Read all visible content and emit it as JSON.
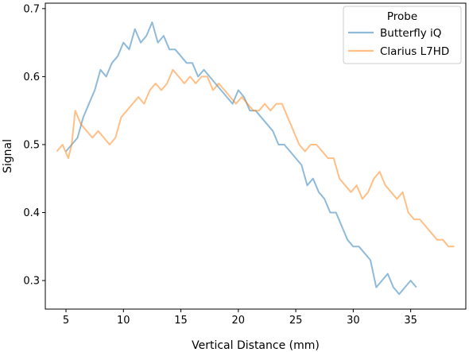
{
  "chart_data": {
    "type": "line",
    "title": "",
    "xlabel": "Vertical Distance (mm)",
    "ylabel": "Signal",
    "xlim": [
      3.2,
      39.8
    ],
    "ylim": [
      0.258,
      0.708
    ],
    "xticks": [
      5,
      10,
      15,
      20,
      25,
      30,
      35
    ],
    "yticks": [
      0.3,
      0.4,
      0.5,
      0.6,
      0.7
    ],
    "xtick_labels": [
      "5",
      "10",
      "15",
      "20",
      "25",
      "30",
      "35"
    ],
    "ytick_labels": [
      "0.3",
      "0.4",
      "0.5",
      "0.6",
      "0.7"
    ],
    "grid": false,
    "legend": {
      "title": "Probe",
      "placement": "top-right"
    },
    "series": [
      {
        "name": "Butterfly iQ",
        "color": "#1f77b4",
        "alpha": 0.5,
        "x": [
          5.0,
          5.5,
          6.0,
          6.5,
          7.0,
          7.5,
          8.0,
          8.5,
          9.0,
          9.5,
          10.0,
          10.5,
          11.0,
          11.5,
          12.0,
          12.5,
          13.0,
          13.5,
          14.0,
          14.5,
          15.0,
          15.5,
          16.0,
          16.5,
          17.0,
          17.5,
          18.0,
          18.5,
          19.0,
          19.5,
          20.0,
          20.5,
          21.0,
          21.5,
          22.0,
          22.5,
          23.0,
          23.5,
          24.0,
          24.5,
          25.0,
          25.5,
          26.0,
          26.5,
          27.0,
          27.5,
          28.0,
          28.5,
          29.0,
          29.5,
          30.0,
          30.5,
          31.0,
          31.5,
          32.0,
          32.5,
          33.0,
          33.5,
          34.0,
          34.5,
          35.0,
          35.5
        ],
        "y": [
          0.49,
          0.5,
          0.51,
          0.54,
          0.56,
          0.58,
          0.61,
          0.6,
          0.62,
          0.63,
          0.65,
          0.64,
          0.67,
          0.65,
          0.66,
          0.68,
          0.65,
          0.66,
          0.64,
          0.64,
          0.63,
          0.62,
          0.62,
          0.6,
          0.61,
          0.6,
          0.59,
          0.58,
          0.57,
          0.56,
          0.58,
          0.57,
          0.55,
          0.55,
          0.54,
          0.53,
          0.52,
          0.5,
          0.5,
          0.49,
          0.48,
          0.47,
          0.44,
          0.45,
          0.43,
          0.42,
          0.4,
          0.4,
          0.38,
          0.36,
          0.35,
          0.35,
          0.34,
          0.33,
          0.29,
          0.3,
          0.31,
          0.29,
          0.28,
          0.29,
          0.3,
          0.29
        ]
      },
      {
        "name": "Clarius L7HD",
        "color": "#ff7f0e",
        "alpha": 0.5,
        "x": [
          4.2,
          4.7,
          5.2,
          5.5,
          5.8,
          6.3,
          6.8,
          7.3,
          7.8,
          8.3,
          8.8,
          9.3,
          9.8,
          10.3,
          10.8,
          11.3,
          11.8,
          12.3,
          12.8,
          13.3,
          13.8,
          14.3,
          14.8,
          15.3,
          15.8,
          16.3,
          16.8,
          17.3,
          17.8,
          18.3,
          18.8,
          19.3,
          19.8,
          20.3,
          20.8,
          21.3,
          21.8,
          22.3,
          22.8,
          23.3,
          23.8,
          24.3,
          24.8,
          25.3,
          25.8,
          26.3,
          26.8,
          27.3,
          27.8,
          28.3,
          28.8,
          29.3,
          29.8,
          30.3,
          30.8,
          31.3,
          31.8,
          32.3,
          32.8,
          33.3,
          33.8,
          34.3,
          34.8,
          35.3,
          35.8,
          36.3,
          36.8,
          37.3,
          37.8,
          38.3,
          38.8
        ],
        "y": [
          0.49,
          0.5,
          0.48,
          0.5,
          0.55,
          0.53,
          0.52,
          0.51,
          0.52,
          0.51,
          0.5,
          0.51,
          0.54,
          0.55,
          0.56,
          0.57,
          0.56,
          0.58,
          0.59,
          0.58,
          0.59,
          0.61,
          0.6,
          0.59,
          0.6,
          0.59,
          0.6,
          0.6,
          0.58,
          0.59,
          0.58,
          0.57,
          0.56,
          0.57,
          0.56,
          0.55,
          0.55,
          0.56,
          0.55,
          0.56,
          0.56,
          0.54,
          0.52,
          0.5,
          0.49,
          0.5,
          0.5,
          0.49,
          0.48,
          0.48,
          0.45,
          0.44,
          0.43,
          0.44,
          0.42,
          0.43,
          0.45,
          0.46,
          0.44,
          0.43,
          0.42,
          0.43,
          0.4,
          0.39,
          0.39,
          0.38,
          0.37,
          0.36,
          0.36,
          0.35,
          0.35
        ]
      }
    ]
  }
}
